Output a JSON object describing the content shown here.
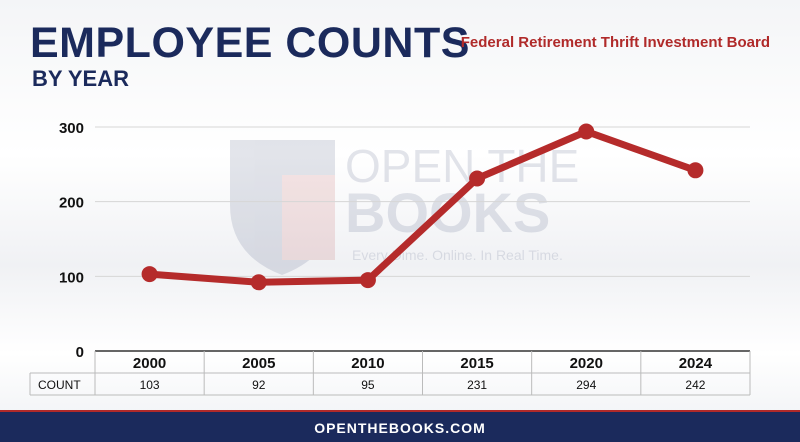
{
  "header": {
    "title": "EMPLOYEE COUNTS",
    "subtitle": "BY YEAR",
    "agency": "Federal Retirement Thrift Investment Board"
  },
  "watermark": {
    "line1": "OPEN THE",
    "line2": "BOOKS",
    "tagline": "Every Dime. Online. In Real Time."
  },
  "footer": {
    "site": "OPENTHEBOOKS.COM"
  },
  "colors": {
    "navy": "#1b2a5c",
    "red": "#b02a2a",
    "line": "#b52b2b"
  },
  "chart_data": {
    "type": "line",
    "title": "EMPLOYEE COUNTS",
    "categories": [
      "2000",
      "2005",
      "2010",
      "2015",
      "2020",
      "2024"
    ],
    "series": [
      {
        "name": "COUNT",
        "values": [
          103,
          92,
          95,
          231,
          294,
          242
        ]
      }
    ],
    "yticks": [
      0,
      100,
      200,
      300
    ],
    "ylim": [
      0,
      300
    ],
    "grid": true,
    "table_row_label": "COUNT"
  }
}
